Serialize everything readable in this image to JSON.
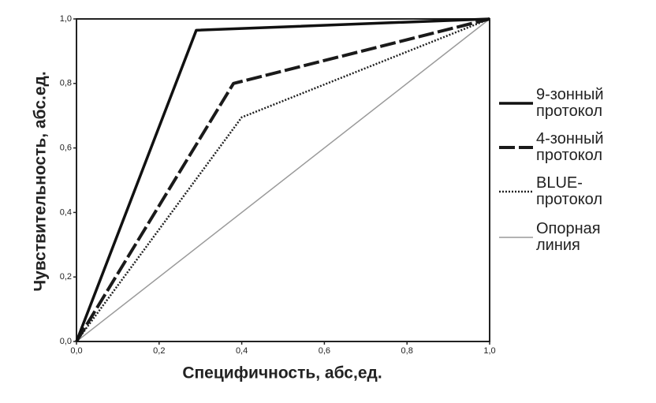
{
  "chart_data": {
    "type": "line",
    "xlabel": "Специфичность, абс,ед.",
    "ylabel": "Чувствительность, абс.ед.",
    "xlim": [
      0,
      1
    ],
    "ylim": [
      0,
      1
    ],
    "xticks": [
      {
        "value": 0,
        "label": "0,0"
      },
      {
        "value": 0.2,
        "label": "0,2"
      },
      {
        "value": 0.4,
        "label": "0,4"
      },
      {
        "value": 0.6,
        "label": "0,6"
      },
      {
        "value": 0.8,
        "label": "0,8"
      },
      {
        "value": 1,
        "label": "1,0"
      }
    ],
    "yticks": [
      {
        "value": 0,
        "label": "0,0"
      },
      {
        "value": 0.2,
        "label": "0,2"
      },
      {
        "value": 0.4,
        "label": "0,4"
      },
      {
        "value": 0.6,
        "label": "0,6"
      },
      {
        "value": 0.8,
        "label": "0,8"
      },
      {
        "value": 1,
        "label": "1,0"
      }
    ],
    "legend": "right",
    "series": [
      {
        "name": "9-зонный протокол",
        "color": "#111111",
        "style": "solid",
        "x": [
          0,
          0.29,
          1
        ],
        "values": [
          0,
          0.965,
          1
        ]
      },
      {
        "name": "4-зонный протокол",
        "color": "#1a1a1a",
        "style": "dashed",
        "x": [
          0,
          0.38,
          1
        ],
        "values": [
          0,
          0.8,
          1
        ]
      },
      {
        "name": "BLUE-протокол",
        "color": "#222222",
        "style": "dotted",
        "x": [
          0,
          0.4,
          1
        ],
        "values": [
          0,
          0.695,
          1
        ]
      },
      {
        "name": "Опорная линия",
        "color": "#9a9a9a",
        "style": "thin",
        "x": [
          0,
          1
        ],
        "values": [
          0,
          1
        ]
      }
    ]
  }
}
